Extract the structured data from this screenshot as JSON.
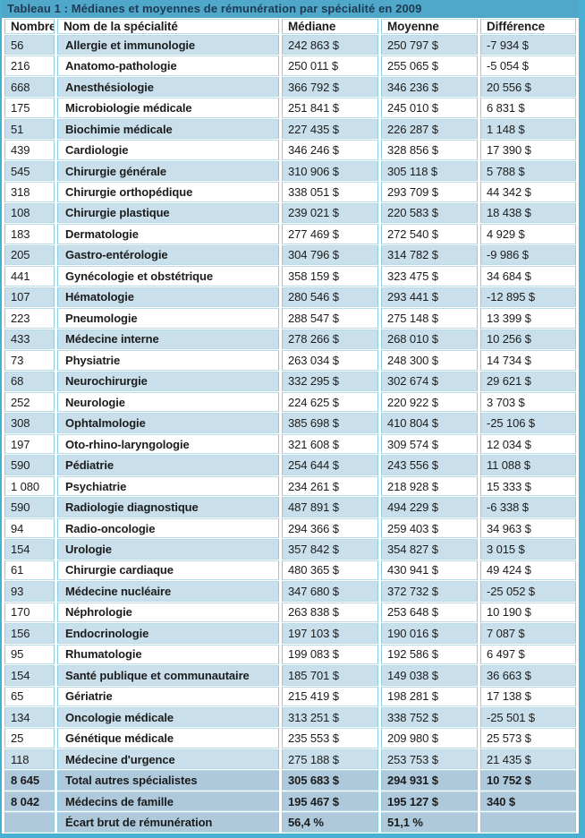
{
  "title": "Tableau 1 : Médianes et moyennes de rémunération par spécialité en 2009",
  "columns": [
    "Nombre",
    "Nom de la spécialité",
    "Médiane",
    "Moyenne",
    "Différence"
  ],
  "rows": [
    {
      "nombre": "56",
      "nom": "Allergie et immunologie",
      "mediane": "242 863 $",
      "moyenne": "250 797 $",
      "difference": "-7 934 $"
    },
    {
      "nombre": "216",
      "nom": "Anatomo-pathologie",
      "mediane": "250 011 $",
      "moyenne": "255 065 $",
      "difference": "-5 054 $"
    },
    {
      "nombre": "668",
      "nom": "Anesthésiologie",
      "mediane": "366 792 $",
      "moyenne": "346 236 $",
      "difference": "20 556 $"
    },
    {
      "nombre": "175",
      "nom": "Microbiologie médicale",
      "mediane": "251 841 $",
      "moyenne": "245 010 $",
      "difference": "6 831 $"
    },
    {
      "nombre": "51",
      "nom": "Biochimie médicale",
      "mediane": "227 435 $",
      "moyenne": "226 287 $",
      "difference": "1 148 $"
    },
    {
      "nombre": "439",
      "nom": "Cardiologie",
      "mediane": "346 246 $",
      "moyenne": "328 856 $",
      "difference": "17 390 $"
    },
    {
      "nombre": "545",
      "nom": "Chirurgie générale",
      "mediane": "310 906 $",
      "moyenne": "305 118 $",
      "difference": "5 788 $"
    },
    {
      "nombre": "318",
      "nom": "Chirurgie orthopédique",
      "mediane": "338 051 $",
      "moyenne": "293 709 $",
      "difference": "44 342 $"
    },
    {
      "nombre": "108",
      "nom": "Chirurgie plastique",
      "mediane": "239 021 $",
      "moyenne": "220 583 $",
      "difference": "18 438 $"
    },
    {
      "nombre": "183",
      "nom": "Dermatologie",
      "mediane": "277 469 $",
      "moyenne": "272 540 $",
      "difference": "4 929 $"
    },
    {
      "nombre": "205",
      "nom": "Gastro-entérologie",
      "mediane": "304 796 $",
      "moyenne": "314 782 $",
      "difference": "-9 986 $"
    },
    {
      "nombre": "441",
      "nom": "Gynécologie et obstétrique",
      "mediane": "358 159 $",
      "moyenne": "323 475 $",
      "difference": "34 684 $"
    },
    {
      "nombre": "107",
      "nom": "Hématologie",
      "mediane": "280 546 $",
      "moyenne": "293 441 $",
      "difference": "-12 895 $"
    },
    {
      "nombre": "223",
      "nom": "Pneumologie",
      "mediane": "288 547 $",
      "moyenne": "275 148 $",
      "difference": "13 399 $"
    },
    {
      "nombre": "433",
      "nom": "Médecine interne",
      "mediane": "278 266 $",
      "moyenne": "268 010 $",
      "difference": "10 256 $"
    },
    {
      "nombre": "73",
      "nom": "Physiatrie",
      "mediane": "263 034 $",
      "moyenne": "248 300 $",
      "difference": "14 734 $"
    },
    {
      "nombre": "68",
      "nom": "Neurochirurgie",
      "mediane": "332 295 $",
      "moyenne": "302 674 $",
      "difference": "29 621 $"
    },
    {
      "nombre": "252",
      "nom": "Neurologie",
      "mediane": "224 625 $",
      "moyenne": "220 922 $",
      "difference": "3 703 $"
    },
    {
      "nombre": "308",
      "nom": "Ophtalmologie",
      "mediane": "385 698 $",
      "moyenne": "410 804 $",
      "difference": "-25 106 $"
    },
    {
      "nombre": "197",
      "nom": "Oto-rhino-laryngologie",
      "mediane": "321 608 $",
      "moyenne": "309 574 $",
      "difference": "12 034 $"
    },
    {
      "nombre": "590",
      "nom": "Pédiatrie",
      "mediane": "254 644 $",
      "moyenne": "243 556 $",
      "difference": "11 088 $"
    },
    {
      "nombre": "1 080",
      "nom": "Psychiatrie",
      "mediane": "234 261 $",
      "moyenne": "218 928 $",
      "difference": "15 333 $"
    },
    {
      "nombre": "590",
      "nom": "Radiologie diagnostique",
      "mediane": "487 891 $",
      "moyenne": "494 229 $",
      "difference": "-6 338 $"
    },
    {
      "nombre": "94",
      "nom": "Radio-oncologie",
      "mediane": "294 366 $",
      "moyenne": "259 403 $",
      "difference": "34 963 $"
    },
    {
      "nombre": "154",
      "nom": "Urologie",
      "mediane": "357 842 $",
      "moyenne": "354 827 $",
      "difference": "3 015 $"
    },
    {
      "nombre": "61",
      "nom": "Chirurgie cardiaque",
      "mediane": "480 365 $",
      "moyenne": "430 941 $",
      "difference": "49 424 $"
    },
    {
      "nombre": "93",
      "nom": "Médecine nucléaire",
      "mediane": "347 680 $",
      "moyenne": "372 732 $",
      "difference": "-25 052 $"
    },
    {
      "nombre": "170",
      "nom": "Néphrologie",
      "mediane": "263 838 $",
      "moyenne": "253 648 $",
      "difference": "10 190 $"
    },
    {
      "nombre": "156",
      "nom": "Endocrinologie",
      "mediane": "197 103 $",
      "moyenne": "190 016 $",
      "difference": "7 087 $"
    },
    {
      "nombre": "95",
      "nom": "Rhumatologie",
      "mediane": "199 083 $",
      "moyenne": "192 586 $",
      "difference": "6 497 $"
    },
    {
      "nombre": "154",
      "nom": "Santé publique et communautaire",
      "mediane": "185 701 $",
      "moyenne": "149 038 $",
      "difference": "36 663 $"
    },
    {
      "nombre": "65",
      "nom": "Gériatrie",
      "mediane": "215 419 $",
      "moyenne": "198 281 $",
      "difference": "17 138 $"
    },
    {
      "nombre": "134",
      "nom": "Oncologie médicale",
      "mediane": "313 251 $",
      "moyenne": "338 752 $",
      "difference": "-25 501 $"
    },
    {
      "nombre": "25",
      "nom": "Génétique médicale",
      "mediane": "235 553 $",
      "moyenne": "209 980 $",
      "difference": "25 573 $"
    },
    {
      "nombre": "118",
      "nom": "Médecine d'urgence",
      "mediane": "275 188 $",
      "moyenne": "253 753 $",
      "difference": "21 435 $"
    },
    {
      "nombre": "8 645",
      "nom": "Total autres spécialistes",
      "mediane": "305 683 $",
      "moyenne": "294 931 $",
      "difference": "10 752 $",
      "emphasis": true
    },
    {
      "nombre": "8 042",
      "nom": "Médecins de famille",
      "mediane": "195 467 $",
      "moyenne": "195 127 $",
      "difference": "340 $",
      "emphasis": true
    },
    {
      "nombre": "",
      "nom": "Écart brut de rémunération",
      "mediane": "56,4 %",
      "moyenne": "51,1 %",
      "difference": "",
      "emphasis": true
    }
  ],
  "colors": {
    "accent": "#48b0d2",
    "title_bg": "#4fa8c9",
    "title_text": "#1e3a55",
    "row_alt_bg": "#c9dfeb",
    "summary_bg": "#adc9db",
    "header_bg": "#ffffff",
    "text": "#1c1c1c"
  }
}
